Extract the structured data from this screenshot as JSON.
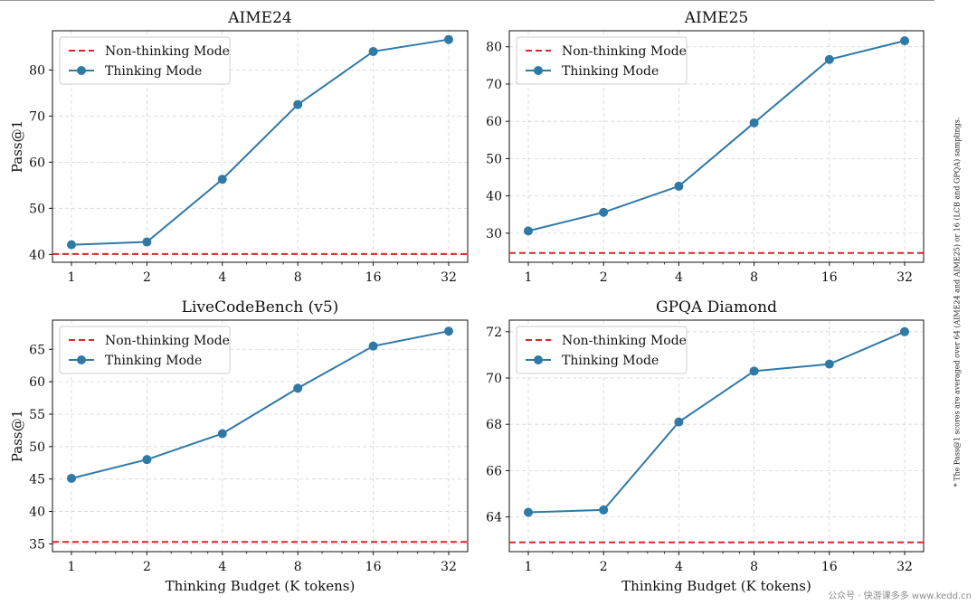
{
  "figure": {
    "footnote": "* The Pass@1 scores are averaged over 64 (AIME24 and AIME25) or 16 (LCB and GPQA) samplings.",
    "watermark_text": "公众号 · 快游课多多 www.kedd.cn",
    "colors": {
      "thinking": "#2f79a7",
      "nonthinking": "#d62728",
      "grid": "#d4d4d4",
      "axes": "#111111",
      "legend_border": "#cfcfcf"
    }
  },
  "chart_data": [
    {
      "type": "line",
      "title": "AIME24",
      "xlabel": "",
      "ylabel": "Pass@1",
      "x": [
        1,
        2,
        4,
        8,
        16,
        32
      ],
      "xticklabels": [
        "1",
        "2",
        "4",
        "8",
        "16",
        "32"
      ],
      "xscale": "log2",
      "ylim": [
        38.3,
        88.5
      ],
      "yticks": [
        40,
        50,
        60,
        70,
        80
      ],
      "grid": true,
      "legend_placement": "top-left",
      "series": [
        {
          "name": "Non-thinking Mode",
          "kind": "hline",
          "value": 40.1,
          "style": "dashed"
        },
        {
          "name": "Thinking Mode",
          "kind": "line",
          "values": [
            42.1,
            42.7,
            56.3,
            72.5,
            84.0,
            86.6
          ],
          "marker": "circle"
        }
      ]
    },
    {
      "type": "line",
      "title": "AIME25",
      "xlabel": "",
      "ylabel": "",
      "x": [
        1,
        2,
        4,
        8,
        16,
        32
      ],
      "xticklabels": [
        "1",
        "2",
        "4",
        "8",
        "16",
        "32"
      ],
      "xscale": "log2",
      "ylim": [
        22.2,
        84.3
      ],
      "yticks": [
        30,
        40,
        50,
        60,
        70,
        80
      ],
      "grid": true,
      "legend_placement": "top-left",
      "series": [
        {
          "name": "Non-thinking Mode",
          "kind": "hline",
          "value": 24.7,
          "style": "dashed"
        },
        {
          "name": "Thinking Mode",
          "kind": "line",
          "values": [
            30.6,
            35.6,
            42.6,
            59.6,
            76.6,
            81.6
          ],
          "marker": "circle"
        }
      ]
    },
    {
      "type": "line",
      "title": "LiveCodeBench (v5)",
      "xlabel": "Thinking Budget (K tokens)",
      "ylabel": "Pass@1",
      "x": [
        1,
        2,
        4,
        8,
        16,
        32
      ],
      "xticklabels": [
        "1",
        "2",
        "4",
        "8",
        "16",
        "32"
      ],
      "xscale": "log2",
      "ylim": [
        33.8,
        69.5
      ],
      "yticks": [
        35,
        40,
        45,
        50,
        55,
        60,
        65
      ],
      "grid": true,
      "legend_placement": "top-left",
      "series": [
        {
          "name": "Non-thinking Mode",
          "kind": "hline",
          "value": 35.3,
          "style": "dashed"
        },
        {
          "name": "Thinking Mode",
          "kind": "line",
          "values": [
            45.1,
            48.0,
            52.0,
            59.0,
            65.5,
            67.8
          ],
          "marker": "circle"
        }
      ]
    },
    {
      "type": "line",
      "title": "GPQA Diamond",
      "xlabel": "Thinking Budget (K tokens)",
      "ylabel": "",
      "x": [
        1,
        2,
        4,
        8,
        16,
        32
      ],
      "xticklabels": [
        "1",
        "2",
        "4",
        "8",
        "16",
        "32"
      ],
      "xscale": "log2",
      "ylim": [
        62.5,
        72.5
      ],
      "yticks": [
        64,
        66,
        68,
        70,
        72
      ],
      "grid": true,
      "legend_placement": "top-left",
      "series": [
        {
          "name": "Non-thinking Mode",
          "kind": "hline",
          "value": 62.9,
          "style": "dashed"
        },
        {
          "name": "Thinking Mode",
          "kind": "line",
          "values": [
            64.2,
            64.3,
            68.1,
            70.3,
            70.6,
            72.0
          ],
          "marker": "circle"
        }
      ]
    }
  ]
}
